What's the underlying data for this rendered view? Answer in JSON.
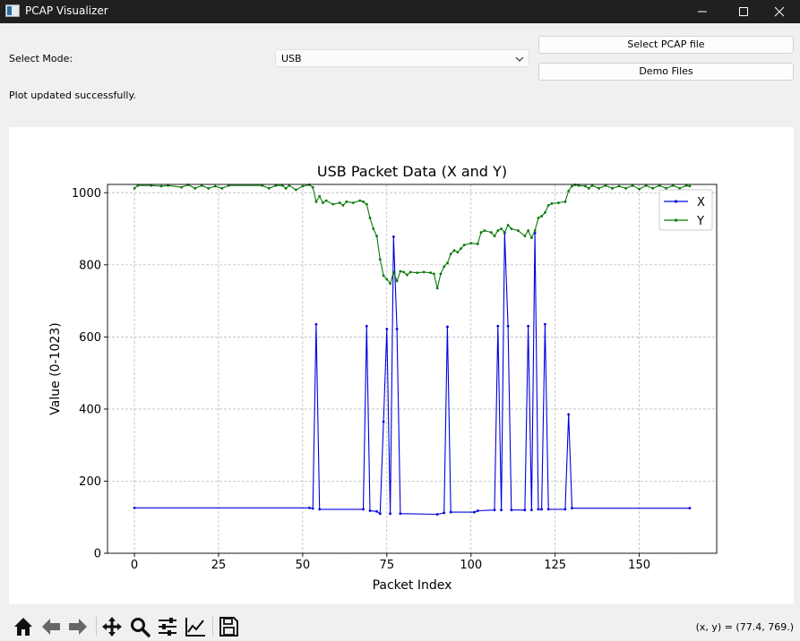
{
  "window": {
    "title": "PCAP Visualizer"
  },
  "mode": {
    "label": "Select Mode:",
    "selected": "USB"
  },
  "buttons": {
    "select_pcap": "Select PCAP file",
    "demo_files": "Demo Files"
  },
  "status": "Plot updated successfully.",
  "coords": "(x, y) = (77.4, 769.)",
  "toolbar": [
    "home-icon",
    "back-arrow-icon",
    "forward-arrow-icon",
    "pan-move-icon",
    "zoom-magnifier-icon",
    "subplots-config-icon",
    "edit-axis-line-icon",
    "save-disk-icon"
  ],
  "chart_data": {
    "type": "line",
    "title": "USB Packet Data (X and Y)",
    "xlabel": "Packet Index",
    "ylabel": "Value (0-1023)",
    "xlim": [
      -8,
      173
    ],
    "ylim": [
      0,
      1023
    ],
    "xticks": [
      0,
      25,
      50,
      75,
      100,
      125,
      150
    ],
    "yticks": [
      0,
      200,
      400,
      600,
      800,
      1000
    ],
    "grid": true,
    "legend_position": "top-right",
    "series": [
      {
        "name": "X",
        "color": "#0000e0",
        "points": [
          [
            0,
            126
          ],
          [
            52,
            126
          ],
          [
            53,
            124
          ],
          [
            54,
            635
          ],
          [
            55,
            122
          ],
          [
            68,
            122
          ],
          [
            69,
            630
          ],
          [
            70,
            118
          ],
          [
            72,
            116
          ],
          [
            73,
            110
          ],
          [
            74,
            365
          ],
          [
            75,
            622
          ],
          [
            76,
            110
          ],
          [
            77,
            878
          ],
          [
            78,
            622
          ],
          [
            79,
            110
          ],
          [
            90,
            108
          ],
          [
            92,
            112
          ],
          [
            93,
            628
          ],
          [
            94,
            114
          ],
          [
            101,
            114
          ],
          [
            102,
            118
          ],
          [
            107,
            120
          ],
          [
            108,
            630
          ],
          [
            109,
            120
          ],
          [
            110,
            888
          ],
          [
            111,
            630
          ],
          [
            112,
            120
          ],
          [
            116,
            120
          ],
          [
            117,
            630
          ],
          [
            118,
            120
          ],
          [
            119,
            888
          ],
          [
            120,
            122
          ],
          [
            121,
            122
          ],
          [
            122,
            635
          ],
          [
            123,
            122
          ],
          [
            128,
            122
          ],
          [
            129,
            385
          ],
          [
            130,
            125
          ],
          [
            165,
            125
          ]
        ]
      },
      {
        "name": "Y",
        "color": "#0a7a0a",
        "points": [
          [
            0,
            1012
          ],
          [
            1,
            1020
          ],
          [
            5,
            1020
          ],
          [
            8,
            1018
          ],
          [
            10,
            1020
          ],
          [
            14,
            1015
          ],
          [
            16,
            1022
          ],
          [
            18,
            1012
          ],
          [
            20,
            1020
          ],
          [
            22,
            1012
          ],
          [
            24,
            1018
          ],
          [
            26,
            1012
          ],
          [
            28,
            1020
          ],
          [
            38,
            1020
          ],
          [
            40,
            1012
          ],
          [
            42,
            1020
          ],
          [
            44,
            1020
          ],
          [
            45,
            1012
          ],
          [
            46,
            1020
          ],
          [
            48,
            1008
          ],
          [
            50,
            1018
          ],
          [
            52,
            1022
          ],
          [
            53,
            1015
          ],
          [
            54,
            975
          ],
          [
            55,
            990
          ],
          [
            56,
            972
          ],
          [
            57,
            978
          ],
          [
            59,
            968
          ],
          [
            61,
            972
          ],
          [
            62,
            965
          ],
          [
            63,
            975
          ],
          [
            65,
            972
          ],
          [
            67,
            978
          ],
          [
            68,
            975
          ],
          [
            69,
            968
          ],
          [
            70,
            930
          ],
          [
            71,
            900
          ],
          [
            72,
            880
          ],
          [
            73,
            815
          ],
          [
            74,
            770
          ],
          [
            75,
            760
          ],
          [
            76,
            748
          ],
          [
            77,
            780
          ],
          [
            78,
            755
          ],
          [
            79,
            782
          ],
          [
            80,
            780
          ],
          [
            81,
            772
          ],
          [
            82,
            780
          ],
          [
            84,
            778
          ],
          [
            86,
            780
          ],
          [
            88,
            778
          ],
          [
            89,
            775
          ],
          [
            90,
            735
          ],
          [
            91,
            775
          ],
          [
            92,
            795
          ],
          [
            93,
            805
          ],
          [
            94,
            830
          ],
          [
            95,
            840
          ],
          [
            96,
            835
          ],
          [
            97,
            845
          ],
          [
            98,
            855
          ],
          [
            100,
            860
          ],
          [
            102,
            858
          ],
          [
            103,
            890
          ],
          [
            104,
            895
          ],
          [
            106,
            890
          ],
          [
            107,
            880
          ],
          [
            108,
            895
          ],
          [
            109,
            900
          ],
          [
            110,
            890
          ],
          [
            111,
            910
          ],
          [
            112,
            900
          ],
          [
            114,
            895
          ],
          [
            116,
            880
          ],
          [
            117,
            895
          ],
          [
            118,
            875
          ],
          [
            119,
            895
          ],
          [
            120,
            930
          ],
          [
            121,
            935
          ],
          [
            122,
            945
          ],
          [
            123,
            965
          ],
          [
            124,
            970
          ],
          [
            126,
            972
          ],
          [
            128,
            975
          ],
          [
            129,
            1005
          ],
          [
            130,
            1018
          ],
          [
            131,
            1022
          ],
          [
            132,
            1020
          ],
          [
            134,
            1018
          ],
          [
            135,
            1012
          ],
          [
            136,
            1020
          ],
          [
            138,
            1012
          ],
          [
            140,
            1020
          ],
          [
            142,
            1012
          ],
          [
            144,
            1018
          ],
          [
            146,
            1012
          ],
          [
            148,
            1020
          ],
          [
            150,
            1010
          ],
          [
            152,
            1020
          ],
          [
            154,
            1012
          ],
          [
            156,
            1020
          ],
          [
            158,
            1012
          ],
          [
            160,
            1020
          ],
          [
            162,
            1012
          ],
          [
            164,
            1020
          ],
          [
            165,
            1018
          ]
        ]
      }
    ]
  }
}
